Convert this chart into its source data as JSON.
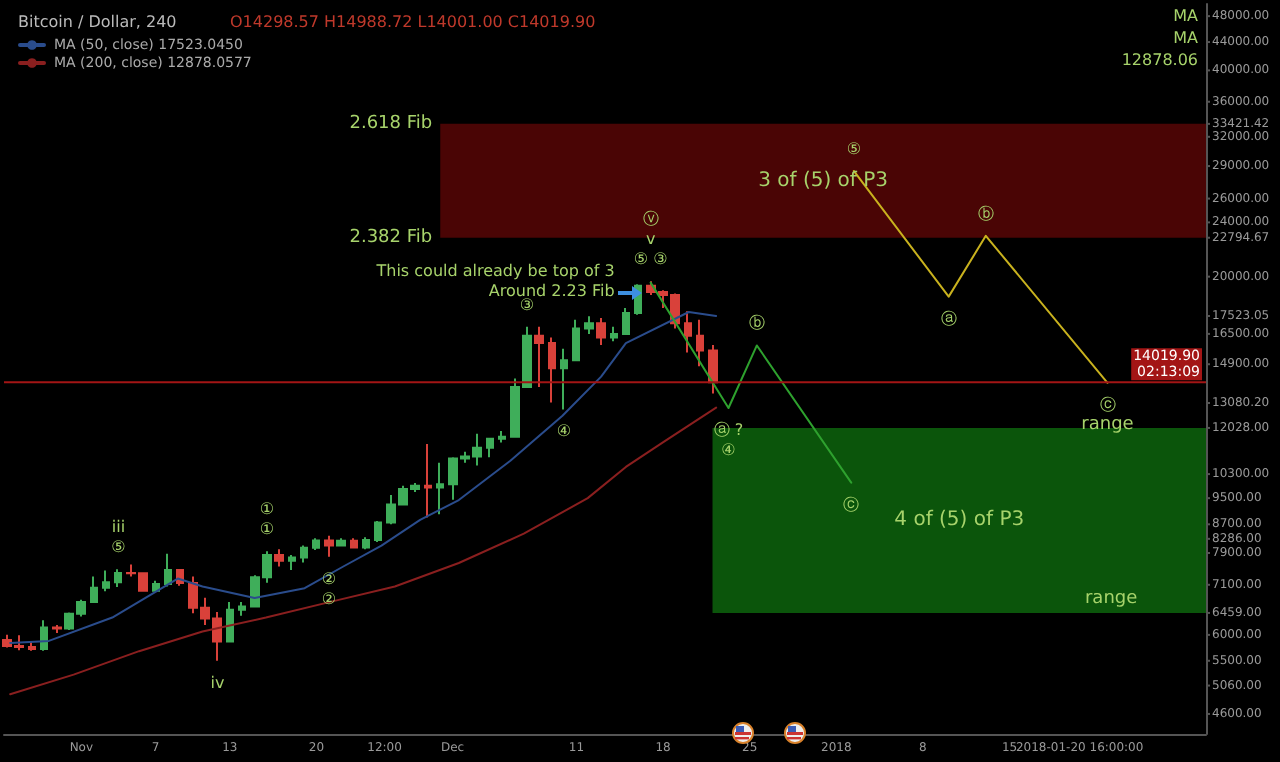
{
  "chart_data": {
    "type": "candlestick",
    "title": "Bitcoin / Dollar, 240",
    "subtitle": "O14298.57 H14988.72 L14001.00 C14019.90",
    "x": [
      "2017-10-26",
      "2017-10-27",
      "2017-10-28",
      "2017-10-29",
      "2017-10-30",
      "2017-10-31",
      "2017-11-01",
      "2017-11-02",
      "2017-11-03",
      "2017-11-04",
      "2017-11-05",
      "2017-11-06",
      "2017-11-07",
      "2017-11-08",
      "2017-11-09",
      "2017-11-10",
      "2017-11-11",
      "2017-11-12",
      "2017-11-13",
      "2017-11-14",
      "2017-11-15",
      "2017-11-16",
      "2017-11-17",
      "2017-11-18",
      "2017-11-19",
      "2017-11-20",
      "2017-11-21",
      "2017-11-22",
      "2017-11-23",
      "2017-11-24",
      "2017-11-25",
      "2017-11-26",
      "2017-11-27",
      "2017-11-28",
      "2017-11-29",
      "2017-11-30",
      "2017-12-01",
      "2017-12-02",
      "2017-12-03",
      "2017-12-04",
      "2017-12-05",
      "2017-12-06",
      "2017-12-07",
      "2017-12-08",
      "2017-12-09",
      "2017-12-10",
      "2017-12-11",
      "2017-12-12",
      "2017-12-13",
      "2017-12-14",
      "2017-12-15",
      "2017-12-16",
      "2017-12-17",
      "2017-12-18",
      "2017-12-19",
      "2017-12-20",
      "2017-12-21",
      "2017-12-22"
    ],
    "ohlc": [
      [
        5900,
        6000,
        5750,
        5780
      ],
      [
        5780,
        5990,
        5700,
        5760
      ],
      [
        5760,
        5870,
        5690,
        5720
      ],
      [
        5720,
        6300,
        5690,
        6150
      ],
      [
        6150,
        6200,
        6040,
        6130
      ],
      [
        6130,
        6470,
        6100,
        6440
      ],
      [
        6440,
        6750,
        6380,
        6700
      ],
      [
        6700,
        7300,
        6700,
        7030
      ],
      [
        7030,
        7450,
        6950,
        7160
      ],
      [
        7160,
        7480,
        7050,
        7390
      ],
      [
        7390,
        7600,
        7300,
        7380
      ],
      [
        7380,
        7400,
        6950,
        6960
      ],
      [
        6960,
        7200,
        6950,
        7120
      ],
      [
        7120,
        7880,
        7060,
        7460
      ],
      [
        7460,
        7470,
        7080,
        7140
      ],
      [
        7140,
        7300,
        6450,
        6570
      ],
      [
        6570,
        6800,
        6200,
        6340
      ],
      [
        6340,
        6480,
        5500,
        5870
      ],
      [
        5870,
        6700,
        5850,
        6530
      ],
      [
        6530,
        6700,
        6400,
        6600
      ],
      [
        6600,
        7330,
        6600,
        7280
      ],
      [
        7280,
        7950,
        7150,
        7850
      ],
      [
        7850,
        8000,
        7550,
        7700
      ],
      [
        7700,
        7850,
        7460,
        7780
      ],
      [
        7780,
        8100,
        7650,
        8040
      ],
      [
        8040,
        8300,
        7980,
        8240
      ],
      [
        8240,
        8370,
        7800,
        8100
      ],
      [
        8100,
        8300,
        8080,
        8230
      ],
      [
        8230,
        8300,
        8020,
        8050
      ],
      [
        8050,
        8330,
        8000,
        8250
      ],
      [
        8250,
        8800,
        8200,
        8750
      ],
      [
        8750,
        9600,
        8700,
        9300
      ],
      [
        9300,
        9900,
        9300,
        9800
      ],
      [
        9800,
        10000,
        9700,
        9900
      ],
      [
        9900,
        11400,
        8900,
        9850
      ],
      [
        9850,
        10700,
        9000,
        9950
      ],
      [
        9950,
        10900,
        9450,
        10850
      ],
      [
        10850,
        11100,
        10700,
        10930
      ],
      [
        10930,
        11800,
        10600,
        11250
      ],
      [
        11250,
        11600,
        10900,
        11600
      ],
      [
        11600,
        11900,
        11450,
        11680
      ],
      [
        11680,
        14200,
        11680,
        13800
      ],
      [
        13800,
        16900,
        13800,
        16400
      ],
      [
        16400,
        16900,
        13800,
        16000
      ],
      [
        16000,
        16300,
        13100,
        14700
      ],
      [
        14700,
        15700,
        12800,
        15100
      ],
      [
        15100,
        17300,
        15100,
        16800
      ],
      [
        16800,
        17500,
        16500,
        17100
      ],
      [
        17100,
        17400,
        15900,
        16300
      ],
      [
        16300,
        16900,
        16100,
        16500
      ],
      [
        16500,
        18000,
        16500,
        17700
      ],
      [
        17700,
        19500,
        17600,
        19400
      ],
      [
        19400,
        19700,
        18800,
        19000
      ],
      [
        19000,
        19100,
        18000,
        18800
      ],
      [
        18800,
        18900,
        16800,
        17100
      ],
      [
        17100,
        17800,
        15500,
        16400
      ],
      [
        16400,
        17300,
        14800,
        15600
      ],
      [
        15600,
        15900,
        13500,
        14019.9
      ]
    ],
    "colors": [
      "#d9413a",
      "#d9413a",
      "#d9413a",
      "#3fae5a",
      "#d9413a",
      "#3fae5a",
      "#3fae5a",
      "#3fae5a",
      "#3fae5a",
      "#3fae5a",
      "#d9413a",
      "#d9413a",
      "#3fae5a",
      "#3fae5a",
      "#d9413a",
      "#d9413a",
      "#d9413a",
      "#d9413a",
      "#3fae5a",
      "#3fae5a",
      "#3fae5a",
      "#3fae5a",
      "#d9413a",
      "#3fae5a",
      "#3fae5a",
      "#3fae5a",
      "#d9413a",
      "#3fae5a",
      "#d9413a",
      "#3fae5a",
      "#3fae5a",
      "#3fae5a",
      "#3fae5a",
      "#3fae5a",
      "#d9413a",
      "#3fae5a",
      "#3fae5a",
      "#3fae5a",
      "#3fae5a",
      "#3fae5a",
      "#3fae5a",
      "#3fae5a",
      "#3fae5a",
      "#d9413a",
      "#d9413a",
      "#3fae5a",
      "#3fae5a",
      "#3fae5a",
      "#d9413a",
      "#3fae5a",
      "#3fae5a",
      "#3fae5a",
      "#d9413a",
      "#d9413a",
      "#d9413a",
      "#d9413a",
      "#d9413a",
      "#d9413a"
    ],
    "series": [
      {
        "name": "MA (50, close) 17523.0450",
        "type": "line",
        "color": "#2a4c8c",
        "x": [
          "2017-10-26T06:00",
          "2017-10-29T09:00",
          "2017-11-03T12:00",
          "2017-11-08T19:00",
          "2017-11-10T19:00",
          "2017-11-15T00:00",
          "2017-11-19T01:00",
          "2017-11-22T04:00",
          "2017-11-25T06:00",
          "2017-11-28T09:00",
          "2017-12-01T12:00",
          "2017-12-05T16:00",
          "2017-12-09T21:00",
          "2017-12-13T00:00",
          "2017-12-15T00:00",
          "2017-12-20T02:00",
          "2017-12-22T07:00"
        ],
        "values": [
          5840,
          5880,
          6360,
          7250,
          7060,
          6790,
          7020,
          7550,
          8100,
          8830,
          9440,
          10770,
          12530,
          14290,
          15990,
          17760,
          17523.05
        ]
      },
      {
        "name": "MA (200, close) 12878.0577",
        "type": "line",
        "color": "#8a1f1f",
        "x": [
          "2017-10-26T06:00",
          "2017-10-31T09:00",
          "2017-11-05T16:00",
          "2017-11-10T19:00",
          "2017-11-15T22:00",
          "2017-11-21T05:00",
          "2017-11-26T08:00",
          "2017-12-01T12:00",
          "2017-12-06T18:00",
          "2017-12-11T22:00",
          "2017-12-15T00:00",
          "2017-12-18T02:00",
          "2017-12-22T07:00"
        ],
        "values": [
          4915,
          5250,
          5680,
          6070,
          6360,
          6710,
          7060,
          7640,
          8430,
          9500,
          10550,
          11490,
          12878.06
        ]
      },
      {
        "type": "line",
        "color": "#2ea12e",
        "x": [
          "2017-12-17T00:00",
          "2017-12-23T07:00",
          "2017-12-25T14:00",
          "2018-01-02T05:00"
        ],
        "values": [
          19600,
          12860,
          15870,
          10010
        ]
      },
      {
        "type": "line",
        "color": "#c9b21e",
        "x": [
          "2018-01-02T10:00",
          "2018-01-10T02:00",
          "2018-01-13T02:00",
          "2018-01-22T22:00"
        ],
        "values": [
          28530,
          18700,
          22940,
          14000
        ]
      }
    ],
    "xlim": [
      "2017-10-25T18:00",
      "2018-01-30T21:00"
    ],
    "xticks": [
      {
        "value": "2017-11-01",
        "label": "Nov"
      },
      {
        "value": "2017-11-07",
        "label": "7"
      },
      {
        "value": "2017-11-13",
        "label": "13"
      },
      {
        "value": "2017-11-20",
        "label": "20"
      },
      {
        "value": "2017-11-25T12:00",
        "label": "12:00"
      },
      {
        "value": "2017-12-01",
        "label": "Dec"
      },
      {
        "value": "2017-12-11",
        "label": "11"
      },
      {
        "value": "2017-12-18",
        "label": "18"
      },
      {
        "value": "2017-12-25",
        "label": "25"
      },
      {
        "value": "2018-01-01",
        "label": "2018"
      },
      {
        "value": "2018-01-08",
        "label": "8"
      },
      {
        "value": "2018-01-15",
        "label": "15"
      },
      {
        "value": "2018-01-20T16:00",
        "label": "2018-01-20 16:00:00"
      }
    ],
    "ylim": [
      4300,
      50000
    ],
    "yticks": [
      {
        "value": 4600,
        "label": "4600.00"
      },
      {
        "value": 5060,
        "label": "5060.00"
      },
      {
        "value": 5500,
        "label": "5500.00"
      },
      {
        "value": 6000,
        "label": "6000.00"
      },
      {
        "value": 6459,
        "label": "6459.00"
      },
      {
        "value": 7100,
        "label": "7100.00"
      },
      {
        "value": 7900,
        "label": "7900.00"
      },
      {
        "value": 8286,
        "label": "8286.00"
      },
      {
        "value": 8700,
        "label": "8700.00"
      },
      {
        "value": 9500,
        "label": "9500.00"
      },
      {
        "value": 10300,
        "label": "10300.00"
      },
      {
        "value": 12028,
        "label": "12028.00"
      },
      {
        "value": 13080.2,
        "label": "13080.20"
      },
      {
        "value": 14900,
        "label": "14900.00"
      },
      {
        "value": 16500,
        "label": "16500.00"
      },
      {
        "value": 17523.05,
        "label": "17523.05"
      },
      {
        "value": 20000,
        "label": "20000.00"
      },
      {
        "value": 22794.67,
        "label": "22794.67"
      },
      {
        "value": 24000,
        "label": "24000.00"
      },
      {
        "value": 26000,
        "label": "26000.00"
      },
      {
        "value": 29000,
        "label": "29000.00"
      },
      {
        "value": 32000,
        "label": "32000.00"
      },
      {
        "value": 33421.42,
        "label": "33421.42"
      },
      {
        "value": 36000,
        "label": "36000.00"
      },
      {
        "value": 40000,
        "label": "40000.00"
      },
      {
        "value": 44000,
        "label": "44000.00"
      },
      {
        "value": 48000,
        "label": "48000.00"
      }
    ],
    "log": true,
    "grid": false,
    "legend": "top left",
    "marker": "none",
    "line_style": "solid",
    "ref_lines": [
      {
        "axis": "y",
        "value": 14019.9,
        "label": "14019.90\n02:13:09",
        "color": "#a31515"
      }
    ],
    "bands": [
      {
        "axis": "y",
        "from": 22794.67,
        "to": 33421.42,
        "color": "#4a0505",
        "label": "3 of (5) of P3"
      },
      {
        "axis": "y",
        "from": 6459,
        "to": 12028,
        "color": "#0b550b",
        "label": "4 of (5) of P3"
      }
    ],
    "annotations": [
      {
        "text": "iii",
        "x": "2017-11-04",
        "y": 7480
      },
      {
        "text": "⑤",
        "x": "2017-11-04",
        "y": 7480
      },
      {
        "text": "iv",
        "x": "2017-11-12",
        "y": 5500
      },
      {
        "text": "①",
        "x": "2017-11-16",
        "y": 7950
      },
      {
        "text": "①",
        "x": "2017-11-16",
        "y": 7950
      },
      {
        "text": "②",
        "x": "2017-11-21",
        "y": 7800
      },
      {
        "text": "②",
        "x": "2017-11-21",
        "y": 7800
      },
      {
        "text": "③",
        "x": "2017-12-07",
        "y": 16900
      },
      {
        "text": "④",
        "x": "2017-12-10",
        "y": 12800
      },
      {
        "text": "ⓥ\nv\n⑤ ③",
        "x": "2017-12-17",
        "y": 19700
      },
      {
        "text": "This could already be top of 3\nAround 2.23 Fib",
        "x": "2017-12-17",
        "y": 19700
      },
      {
        "text": "ⓐ ?",
        "x": "2017-12-23T07:00",
        "y": 12860
      },
      {
        "text": "④",
        "x": "2017-12-23T07:00",
        "y": 12860
      },
      {
        "text": "ⓑ",
        "x": "2017-12-25T14:00",
        "y": 15870
      },
      {
        "text": "ⓒ",
        "x": "2018-01-02T05:00",
        "y": 10010
      },
      {
        "text": "⑤",
        "x": "2018-01-02T10:00",
        "y": 28530
      },
      {
        "text": "ⓐ",
        "x": "2018-01-10T02:00",
        "y": 18700
      },
      {
        "text": "ⓑ",
        "x": "2018-01-13T02:00",
        "y": 22940
      },
      {
        "text": "ⓒ",
        "x": "2018-01-22T22:00",
        "y": 14000
      },
      {
        "text": "range",
        "x": "2018-01-22T22:00",
        "y": 14000
      },
      {
        "text": "range",
        "x": "2018-01-23T05:00",
        "y": 6459
      },
      {
        "text": "2.618 Fib",
        "x": "2017-11-30",
        "y": 33421.42
      },
      {
        "text": "2.382 Fib",
        "x": "2017-11-30",
        "y": 22794.67
      },
      "MA",
      "MA",
      "12878.06"
    ]
  }
}
